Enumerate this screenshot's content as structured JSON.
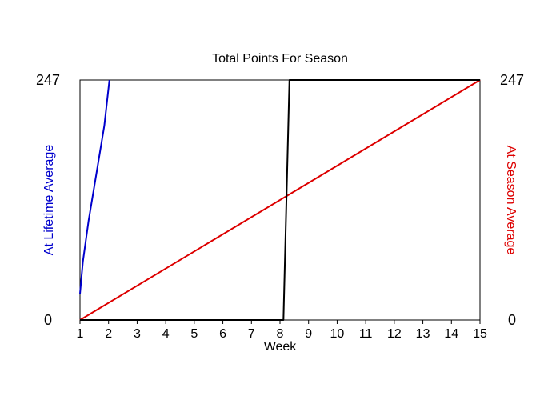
{
  "chart_data": {
    "type": "line",
    "title": "Total Points For Season",
    "xlabel": "Week",
    "ylabel_left": "At Lifetime Average",
    "ylabel_right": "At Season Average",
    "x_ticks": [
      1,
      2,
      3,
      4,
      5,
      6,
      7,
      8,
      9,
      10,
      11,
      12,
      13,
      14,
      15
    ],
    "xlim": [
      1,
      15
    ],
    "ylim_left": [
      0,
      247
    ],
    "ylim_right": [
      0,
      247
    ],
    "y_ticks_left": [
      "0",
      "247"
    ],
    "y_ticks_right": [
      "0",
      "247"
    ],
    "grid": false,
    "series": [
      {
        "axis": "left",
        "color": "#0000cc",
        "x": [
          1,
          1.1,
          1.3,
          1.6,
          1.85,
          2.03
        ],
        "y": [
          27,
          60,
          102,
          155,
          200,
          247
        ]
      },
      {
        "axis": "right",
        "color": "#dd0000",
        "x": [
          1,
          15
        ],
        "y": [
          0,
          247
        ]
      },
      {
        "axis": "right",
        "color": "#000000",
        "x": [
          1,
          8.12,
          8.33,
          15
        ],
        "y": [
          0,
          0,
          247,
          247
        ]
      }
    ]
  }
}
